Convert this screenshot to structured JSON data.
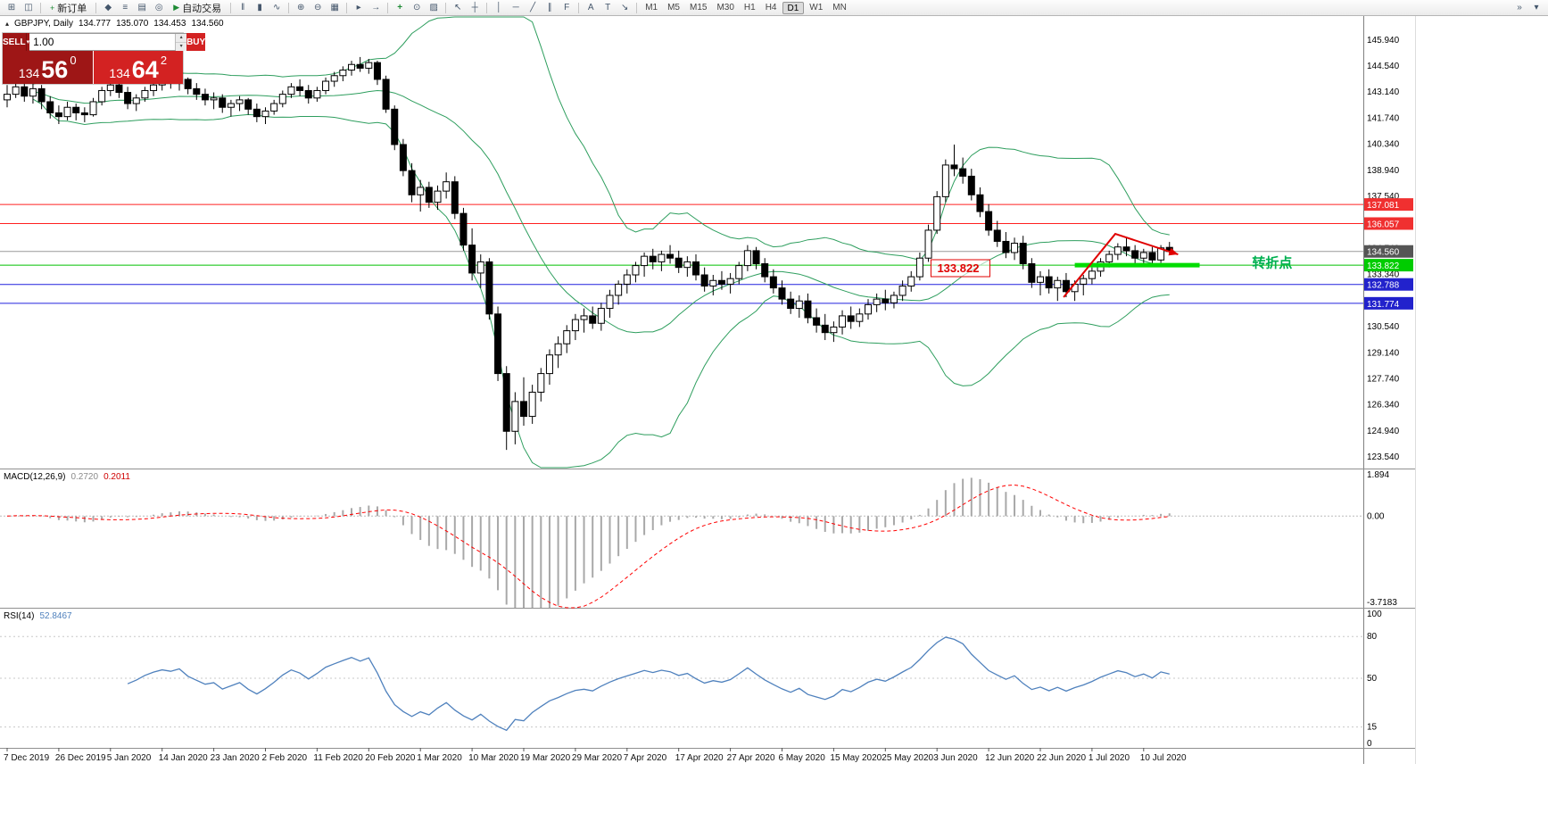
{
  "icons": {
    "collapse": "▴",
    "spin_up": "▴",
    "spin_down": "▾",
    "order_options": "▾"
  },
  "toolbar": {
    "items": [
      {
        "t": "icon",
        "name": "new-chart-icon",
        "glyph": "⊞"
      },
      {
        "t": "icon",
        "name": "chart-profiles-icon",
        "glyph": "◫"
      },
      {
        "t": "sep"
      },
      {
        "t": "btn",
        "name": "new-order-button",
        "icon_name": "new-order-icon",
        "glyph": "+",
        "label": "新订单"
      },
      {
        "t": "sep"
      },
      {
        "t": "icon",
        "name": "metaeditor-icon",
        "glyph": "◆"
      },
      {
        "t": "icon",
        "name": "market-watch-icon",
        "glyph": "≡"
      },
      {
        "t": "icon",
        "name": "data-window-icon",
        "glyph": "▤"
      },
      {
        "t": "icon",
        "name": "navigator-icon",
        "glyph": "◎"
      },
      {
        "t": "btn",
        "name": "autotrading-button",
        "icon_name": "autotrading-play-icon",
        "glyph": "▶",
        "label": "自动交易"
      },
      {
        "t": "sep"
      },
      {
        "t": "icon",
        "name": "bar-chart-icon",
        "glyph": "‖"
      },
      {
        "t": "icon",
        "name": "candlestick-chart-icon",
        "glyph": "▮"
      },
      {
        "t": "icon",
        "name": "line-chart-icon",
        "glyph": "∿"
      },
      {
        "t": "sep"
      },
      {
        "t": "icon",
        "name": "zoom-in-icon",
        "glyph": "⊕"
      },
      {
        "t": "icon",
        "name": "zoom-out-icon",
        "glyph": "⊖"
      },
      {
        "t": "icon",
        "name": "tile-windows-icon",
        "glyph": "▦"
      },
      {
        "t": "sep"
      },
      {
        "t": "icon",
        "name": "auto-scroll-icon",
        "glyph": "▸"
      },
      {
        "t": "icon",
        "name": "chart-shift-icon",
        "glyph": "→"
      },
      {
        "t": "sep"
      },
      {
        "t": "icon",
        "name": "indicators-icon",
        "glyph": "+",
        "accent": true
      },
      {
        "t": "icon",
        "name": "periods-icon",
        "glyph": "⊙"
      },
      {
        "t": "icon",
        "name": "templates-icon",
        "glyph": "▨"
      },
      {
        "t": "sep"
      },
      {
        "t": "icon",
        "name": "cursor-icon",
        "glyph": "↖"
      },
      {
        "t": "icon",
        "name": "crosshair-icon",
        "glyph": "┼"
      },
      {
        "t": "sep"
      },
      {
        "t": "icon",
        "name": "vertical-line-icon",
        "glyph": "│"
      },
      {
        "t": "icon",
        "name": "horizontal-line-icon",
        "glyph": "─"
      },
      {
        "t": "icon",
        "name": "trendline-icon",
        "glyph": "╱"
      },
      {
        "t": "icon",
        "name": "channel-icon",
        "glyph": "∥"
      },
      {
        "t": "icon",
        "name": "fibonacci-icon",
        "glyph": "F"
      },
      {
        "t": "sep"
      },
      {
        "t": "icon",
        "name": "text-icon",
        "glyph": "A"
      },
      {
        "t": "icon",
        "name": "text-label-icon",
        "glyph": "T"
      },
      {
        "t": "icon",
        "name": "arrows-icon",
        "glyph": "↘"
      },
      {
        "t": "sep"
      },
      {
        "t": "timeframes"
      },
      {
        "t": "spacer"
      },
      {
        "t": "icon",
        "name": "toolbar-overflow-icon",
        "glyph": "»"
      },
      {
        "t": "icon",
        "name": "toolbar-customize-icon",
        "glyph": "▾"
      }
    ],
    "timeframes": [
      "M1",
      "M5",
      "M15",
      "M30",
      "H1",
      "H4",
      "D1",
      "W1",
      "MN"
    ],
    "active_timeframe": "D1"
  },
  "symbol_header": {
    "title": "GBPJPY, Daily",
    "open": "134.777",
    "high": "135.070",
    "low": "134.453",
    "close": "134.560"
  },
  "trade_panel": {
    "sell_label": "SELL",
    "buy_label": "BUY",
    "volume": "1.00",
    "sell": {
      "prefix": "134",
      "main": "56",
      "pip": "0"
    },
    "buy": {
      "prefix": "134",
      "main": "64",
      "pip": "2"
    }
  },
  "indicators": {
    "macd_name": "MACD(12,26,9)",
    "macd_value": "0.2720",
    "macd_signal_value": "0.2011",
    "macd_fast": 12,
    "macd_slow": 26,
    "macd_signal": 9,
    "macd_axis": [
      {
        "v": 1.894,
        "label": "1.894"
      },
      {
        "v": 0,
        "label": "0.00"
      },
      {
        "v": -3.7183,
        "label": "-3.7183"
      }
    ],
    "rsi_name": "RSI(14)",
    "rsi_value": "52.8467",
    "rsi_period": 14,
    "rsi_axis": [
      {
        "v": 100,
        "label": "100"
      },
      {
        "v": 80,
        "label": "80"
      },
      {
        "v": 50,
        "label": "50"
      },
      {
        "v": 15,
        "label": "15"
      },
      {
        "v": 0,
        "label": "0"
      }
    ],
    "rsi_levels": [
      80,
      50,
      15
    ]
  },
  "levels": [
    {
      "name": "resistance-line-1",
      "value": 137.081,
      "color": "#ff2020",
      "width": 1
    },
    {
      "name": "resistance-line-2",
      "value": 136.057,
      "color": "#ff2020",
      "width": 1
    },
    {
      "name": "current-price-line",
      "value": 134.56,
      "color": "#9a9a9a",
      "width": 1
    },
    {
      "name": "support-line-green",
      "value": 133.822,
      "color": "#00c000",
      "width": 1
    },
    {
      "name": "support-line-blue-1",
      "value": 132.788,
      "color": "#2020dd",
      "width": 1
    },
    {
      "name": "support-line-blue-2",
      "value": 131.774,
      "color": "#2020dd",
      "width": 1
    }
  ],
  "price_axis": {
    "first_tick": 145.94,
    "tick_step": 1.4,
    "decimals": 3,
    "badges": [
      {
        "value": 137.081,
        "label": "137.081",
        "color": "#f03030",
        "text_color": "#ffffff"
      },
      {
        "value": 136.057,
        "label": "136.057",
        "color": "#f03030",
        "text_color": "#ffffff"
      },
      {
        "value": 134.56,
        "label": "134.560",
        "color": "#555555",
        "text_color": "#ffffff"
      },
      {
        "value": 133.822,
        "label": "133.822",
        "color": "#00cc00",
        "text_color": "#ffffff"
      },
      {
        "value": 132.788,
        "label": "132.788",
        "color": "#2222cc",
        "text_color": "#ffffff"
      },
      {
        "value": 131.774,
        "label": "131.774",
        "color": "#2222cc",
        "text_color": "#ffffff"
      }
    ]
  },
  "annotations": {
    "price_box": {
      "text": "133.822",
      "x_index": 107.3,
      "value": 133.66,
      "color": "#e00000"
    },
    "trend_zone": {
      "from_index": 124,
      "to_index": 138.5,
      "value": 133.822,
      "color": "#00dd00",
      "width": 5
    },
    "arrow": {
      "points": [
        [
          122.7,
          132.1
        ],
        [
          128.7,
          135.5
        ],
        [
          136.0,
          134.4
        ]
      ],
      "color": "#e00000"
    },
    "turning_point": {
      "text": "转折点",
      "x_index": 144.6,
      "value": 133.95,
      "color": "#00b050"
    }
  },
  "chart_data": {
    "type": "candlestick",
    "symbol": "GBPJPY",
    "timeframe": "Daily",
    "current_ohlc": {
      "open": 134.777,
      "high": 135.07,
      "low": 134.453,
      "close": 134.56
    },
    "ylim": [
      122.9,
      147.2
    ],
    "overlays": {
      "bollinger_period": 20,
      "bollinger_deviation": 2
    },
    "style": {
      "bull": "#ffffff",
      "bear": "#000000",
      "outline": "#000000",
      "bollinger": "#2e9e5e",
      "macd_hist": "#a8a8a8",
      "macd_signal": "#ff0000",
      "rsi": "#4f81bd"
    },
    "x_label_every": 6,
    "x_labels": [
      "7 Dec 2019",
      "26 Dec 2019",
      "5 Jan 2020",
      "14 Jan 2020",
      "23 Jan 2020",
      "2 Feb 2020",
      "11 Feb 2020",
      "20 Feb 2020",
      "1 Mar 2020",
      "10 Mar 2020",
      "19 Mar 2020",
      "29 Mar 2020",
      "7 Apr 2020",
      "17 Apr 2020",
      "27 Apr 2020",
      "6 May 2020",
      "15 May 2020",
      "25 May 2020",
      "3 Jun 2020",
      "12 Jun 2020",
      "22 Jun 2020",
      "1 Jul 2020",
      "10 Jul 2020"
    ],
    "ohlc": [
      [
        142.7,
        143.5,
        142.3,
        143.0
      ],
      [
        143.0,
        143.7,
        142.8,
        143.4
      ],
      [
        143.4,
        143.7,
        142.6,
        142.9
      ],
      [
        142.9,
        143.6,
        142.5,
        143.3
      ],
      [
        143.3,
        143.5,
        142.2,
        142.6
      ],
      [
        142.6,
        142.9,
        141.7,
        142.0
      ],
      [
        142.0,
        142.4,
        141.4,
        141.8
      ],
      [
        141.8,
        142.6,
        141.6,
        142.3
      ],
      [
        142.3,
        142.5,
        141.6,
        142.0
      ],
      [
        142.0,
        142.3,
        141.5,
        141.9
      ],
      [
        141.9,
        142.8,
        141.8,
        142.6
      ],
      [
        142.6,
        143.4,
        142.4,
        143.2
      ],
      [
        143.2,
        143.7,
        142.9,
        143.5
      ],
      [
        143.5,
        143.8,
        142.8,
        143.1
      ],
      [
        143.1,
        143.4,
        142.2,
        142.5
      ],
      [
        142.5,
        143.0,
        142.1,
        142.8
      ],
      [
        142.8,
        143.4,
        142.6,
        143.2
      ],
      [
        143.2,
        143.7,
        142.9,
        143.5
      ],
      [
        143.5,
        143.9,
        143.2,
        143.7
      ],
      [
        143.7,
        144.0,
        143.3,
        143.6
      ],
      [
        143.6,
        143.9,
        143.2,
        143.8
      ],
      [
        143.8,
        143.9,
        143.0,
        143.3
      ],
      [
        143.3,
        143.6,
        142.7,
        143.0
      ],
      [
        143.0,
        143.3,
        142.4,
        142.7
      ],
      [
        142.7,
        143.1,
        142.2,
        142.8
      ],
      [
        142.8,
        143.0,
        142.0,
        142.3
      ],
      [
        142.3,
        142.7,
        141.8,
        142.5
      ],
      [
        142.5,
        142.9,
        142.1,
        142.7
      ],
      [
        142.7,
        142.8,
        141.9,
        142.2
      ],
      [
        142.2,
        142.5,
        141.5,
        141.8
      ],
      [
        141.8,
        142.3,
        141.4,
        142.1
      ],
      [
        142.1,
        142.7,
        141.9,
        142.5
      ],
      [
        142.5,
        143.2,
        142.3,
        143.0
      ],
      [
        143.0,
        143.6,
        142.8,
        143.4
      ],
      [
        143.4,
        143.8,
        142.9,
        143.2
      ],
      [
        143.2,
        143.5,
        142.5,
        142.8
      ],
      [
        142.8,
        143.4,
        142.6,
        143.2
      ],
      [
        143.2,
        143.9,
        143.0,
        143.7
      ],
      [
        143.7,
        144.2,
        143.4,
        144.0
      ],
      [
        144.0,
        144.5,
        143.7,
        144.3
      ],
      [
        144.3,
        144.8,
        144.0,
        144.6
      ],
      [
        144.6,
        145.0,
        144.2,
        144.4
      ],
      [
        144.4,
        144.9,
        144.1,
        144.7
      ],
      [
        144.7,
        144.8,
        143.5,
        143.8
      ],
      [
        143.8,
        144.0,
        142.0,
        142.2
      ],
      [
        142.2,
        142.4,
        140.0,
        140.3
      ],
      [
        140.3,
        140.6,
        138.6,
        138.9
      ],
      [
        138.9,
        139.3,
        137.2,
        137.6
      ],
      [
        137.6,
        138.4,
        136.7,
        138.0
      ],
      [
        138.0,
        138.3,
        136.9,
        137.2
      ],
      [
        137.2,
        138.1,
        136.8,
        137.8
      ],
      [
        137.8,
        138.8,
        137.4,
        138.3
      ],
      [
        138.3,
        138.6,
        136.3,
        136.6
      ],
      [
        136.6,
        136.9,
        134.6,
        134.9
      ],
      [
        134.9,
        135.8,
        133.0,
        133.4
      ],
      [
        133.4,
        134.4,
        132.6,
        134.0
      ],
      [
        134.0,
        134.2,
        130.9,
        131.2
      ],
      [
        131.2,
        131.6,
        127.6,
        128.0
      ],
      [
        128.0,
        128.4,
        123.9,
        124.9
      ],
      [
        124.9,
        127.0,
        124.2,
        126.5
      ],
      [
        126.5,
        127.8,
        125.2,
        125.7
      ],
      [
        125.7,
        127.4,
        125.3,
        127.0
      ],
      [
        127.0,
        128.3,
        126.5,
        128.0
      ],
      [
        128.0,
        129.3,
        127.4,
        129.0
      ],
      [
        129.0,
        130.0,
        128.3,
        129.6
      ],
      [
        129.6,
        130.6,
        129.1,
        130.3
      ],
      [
        130.3,
        131.2,
        129.8,
        130.9
      ],
      [
        130.9,
        131.5,
        130.2,
        131.1
      ],
      [
        131.1,
        131.6,
        130.4,
        130.7
      ],
      [
        130.7,
        131.8,
        130.3,
        131.5
      ],
      [
        131.5,
        132.5,
        131.0,
        132.2
      ],
      [
        132.2,
        133.0,
        131.7,
        132.8
      ],
      [
        132.8,
        133.6,
        132.3,
        133.3
      ],
      [
        133.3,
        134.0,
        132.9,
        133.8
      ],
      [
        133.8,
        134.5,
        133.2,
        134.3
      ],
      [
        134.3,
        134.7,
        133.6,
        134.0
      ],
      [
        134.0,
        134.6,
        133.5,
        134.4
      ],
      [
        134.4,
        134.9,
        133.9,
        134.2
      ],
      [
        134.2,
        134.6,
        133.4,
        133.7
      ],
      [
        133.7,
        134.3,
        133.2,
        134.0
      ],
      [
        134.0,
        134.4,
        133.0,
        133.3
      ],
      [
        133.3,
        133.7,
        132.4,
        132.7
      ],
      [
        132.7,
        133.3,
        132.2,
        133.0
      ],
      [
        133.0,
        133.5,
        132.5,
        132.8
      ],
      [
        132.8,
        133.4,
        132.3,
        133.1
      ],
      [
        133.1,
        134.0,
        132.8,
        133.8
      ],
      [
        133.8,
        134.9,
        133.5,
        134.6
      ],
      [
        134.6,
        134.8,
        133.6,
        133.9
      ],
      [
        133.9,
        134.2,
        132.9,
        133.2
      ],
      [
        133.2,
        133.6,
        132.3,
        132.6
      ],
      [
        132.6,
        133.0,
        131.7,
        132.0
      ],
      [
        132.0,
        132.4,
        131.2,
        131.5
      ],
      [
        131.5,
        132.2,
        131.0,
        131.9
      ],
      [
        131.9,
        132.3,
        130.7,
        131.0
      ],
      [
        131.0,
        131.5,
        130.2,
        130.6
      ],
      [
        130.6,
        131.2,
        129.8,
        130.2
      ],
      [
        130.2,
        130.8,
        129.7,
        130.5
      ],
      [
        130.5,
        131.4,
        130.1,
        131.1
      ],
      [
        131.1,
        131.6,
        130.4,
        130.8
      ],
      [
        130.8,
        131.5,
        130.5,
        131.2
      ],
      [
        131.2,
        132.0,
        130.9,
        131.7
      ],
      [
        131.7,
        132.3,
        131.3,
        132.0
      ],
      [
        132.0,
        132.5,
        131.4,
        131.8
      ],
      [
        131.8,
        132.4,
        131.5,
        132.2
      ],
      [
        132.2,
        133.0,
        131.9,
        132.7
      ],
      [
        132.7,
        133.5,
        132.4,
        133.2
      ],
      [
        133.2,
        134.5,
        133.0,
        134.2
      ],
      [
        134.2,
        136.0,
        134.0,
        135.7
      ],
      [
        135.7,
        137.8,
        135.5,
        137.5
      ],
      [
        137.5,
        139.5,
        137.2,
        139.2
      ],
      [
        139.2,
        140.3,
        138.6,
        139.0
      ],
      [
        139.0,
        139.6,
        138.2,
        138.6
      ],
      [
        138.6,
        139.0,
        137.3,
        137.6
      ],
      [
        137.6,
        138.0,
        136.4,
        136.7
      ],
      [
        136.7,
        137.1,
        135.4,
        135.7
      ],
      [
        135.7,
        136.2,
        134.8,
        135.1
      ],
      [
        135.1,
        135.6,
        134.2,
        134.5
      ],
      [
        134.5,
        135.3,
        134.1,
        135.0
      ],
      [
        135.0,
        135.4,
        133.6,
        133.9
      ],
      [
        133.9,
        134.2,
        132.6,
        132.9
      ],
      [
        132.9,
        133.5,
        132.2,
        133.2
      ],
      [
        133.2,
        133.6,
        132.3,
        132.6
      ],
      [
        132.6,
        133.2,
        131.9,
        133.0
      ],
      [
        133.0,
        133.4,
        132.1,
        132.4
      ],
      [
        132.4,
        133.0,
        131.9,
        132.8
      ],
      [
        132.8,
        133.3,
        132.2,
        133.1
      ],
      [
        133.1,
        133.7,
        132.8,
        133.5
      ],
      [
        133.5,
        134.2,
        133.2,
        134.0
      ],
      [
        134.0,
        134.6,
        133.7,
        134.4
      ],
      [
        134.4,
        135.0,
        134.1,
        134.8
      ],
      [
        134.8,
        135.3,
        134.3,
        134.6
      ],
      [
        134.6,
        134.9,
        133.9,
        134.2
      ],
      [
        134.2,
        134.7,
        133.8,
        134.5
      ],
      [
        134.5,
        134.8,
        133.9,
        134.1
      ],
      [
        134.1,
        134.9,
        133.95,
        134.75
      ],
      [
        134.777,
        135.07,
        134.453,
        134.56
      ]
    ]
  }
}
